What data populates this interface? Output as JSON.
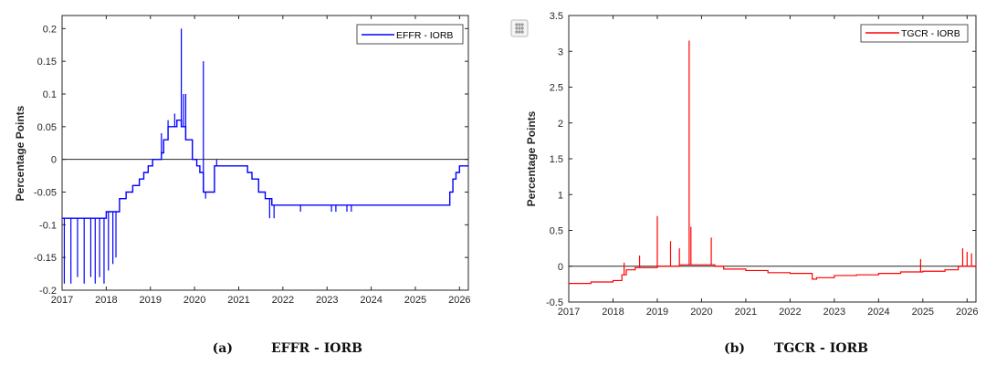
{
  "chart_data": [
    {
      "type": "line",
      "caption_tag": "(a)",
      "caption_title": "EFFR - IORB",
      "ylabel": "Percentage Points",
      "xlabel": "",
      "xlim": [
        2017,
        2026.2
      ],
      "ylim": [
        -0.2,
        0.22
      ],
      "xticks": [
        2017,
        2018,
        2019,
        2020,
        2021,
        2022,
        2023,
        2024,
        2025,
        2026
      ],
      "yticks": [
        -0.2,
        -0.15,
        -0.1,
        -0.05,
        0,
        0.05,
        0.1,
        0.15,
        0.2
      ],
      "zero_line": 0,
      "legend": "top-right",
      "series": [
        {
          "name": "EFFR - IORB",
          "color": "#0000ff",
          "base": [
            [
              2017.0,
              -0.09
            ],
            [
              2017.95,
              -0.09
            ],
            [
              2018.0,
              -0.08
            ],
            [
              2018.25,
              -0.08
            ],
            [
              2018.3,
              -0.06
            ],
            [
              2018.45,
              -0.05
            ],
            [
              2018.6,
              -0.04
            ],
            [
              2018.75,
              -0.03
            ],
            [
              2018.85,
              -0.02
            ],
            [
              2018.95,
              -0.01
            ],
            [
              2019.05,
              0.0
            ],
            [
              2019.25,
              0.01
            ],
            [
              2019.3,
              0.03
            ],
            [
              2019.4,
              0.05
            ],
            [
              2019.5,
              0.05
            ],
            [
              2019.6,
              0.06
            ],
            [
              2019.7,
              0.05
            ],
            [
              2019.8,
              0.03
            ],
            [
              2019.95,
              0.0
            ],
            [
              2020.05,
              -0.01
            ],
            [
              2020.12,
              -0.02
            ],
            [
              2020.2,
              -0.05
            ],
            [
              2020.35,
              -0.05
            ],
            [
              2020.45,
              -0.01
            ],
            [
              2020.6,
              -0.01
            ],
            [
              2021.0,
              -0.01
            ],
            [
              2021.2,
              -0.02
            ],
            [
              2021.3,
              -0.03
            ],
            [
              2021.45,
              -0.05
            ],
            [
              2021.6,
              -0.06
            ],
            [
              2021.75,
              -0.07
            ],
            [
              2025.7,
              -0.07
            ],
            [
              2025.78,
              -0.05
            ],
            [
              2025.85,
              -0.03
            ],
            [
              2025.92,
              -0.02
            ],
            [
              2026.0,
              -0.01
            ],
            [
              2026.2,
              -0.01
            ]
          ],
          "spikes": [
            [
              2017.05,
              -0.19
            ],
            [
              2017.2,
              -0.19
            ],
            [
              2017.35,
              -0.18
            ],
            [
              2017.5,
              -0.19
            ],
            [
              2017.65,
              -0.18
            ],
            [
              2017.75,
              -0.19
            ],
            [
              2017.85,
              -0.18
            ],
            [
              2017.95,
              -0.19
            ],
            [
              2018.05,
              -0.17
            ],
            [
              2018.15,
              -0.16
            ],
            [
              2018.22,
              -0.15
            ],
            [
              2019.25,
              0.04
            ],
            [
              2019.4,
              0.06
            ],
            [
              2019.55,
              0.07
            ],
            [
              2019.7,
              0.2
            ],
            [
              2019.75,
              0.1
            ],
            [
              2019.8,
              0.1
            ],
            [
              2020.2,
              0.15
            ],
            [
              2020.25,
              -0.06
            ],
            [
              2020.5,
              0.0
            ],
            [
              2021.7,
              -0.09
            ],
            [
              2021.8,
              -0.09
            ],
            [
              2022.4,
              -0.08
            ],
            [
              2023.1,
              -0.08
            ],
            [
              2023.2,
              -0.08
            ],
            [
              2023.45,
              -0.08
            ],
            [
              2023.55,
              -0.08
            ]
          ]
        }
      ]
    },
    {
      "type": "line",
      "caption_tag": "(b)",
      "caption_title": "TGCR - IORB",
      "ylabel": "Percentage Points",
      "xlabel": "",
      "xlim": [
        2017,
        2026.2
      ],
      "ylim": [
        -0.5,
        3.5
      ],
      "xticks": [
        2017,
        2018,
        2019,
        2020,
        2021,
        2022,
        2023,
        2024,
        2025,
        2026
      ],
      "yticks": [
        -0.5,
        0,
        0.5,
        1,
        1.5,
        2,
        2.5,
        3,
        3.5
      ],
      "zero_line": 0,
      "legend": "top-right",
      "series": [
        {
          "name": "TGCR - IORB",
          "color": "#ff0000",
          "base": [
            [
              2017.0,
              -0.24
            ],
            [
              2017.5,
              -0.22
            ],
            [
              2018.0,
              -0.2
            ],
            [
              2018.2,
              -0.12
            ],
            [
              2018.3,
              -0.05
            ],
            [
              2018.5,
              -0.02
            ],
            [
              2019.0,
              0.0
            ],
            [
              2019.5,
              0.02
            ],
            [
              2020.0,
              0.02
            ],
            [
              2020.3,
              0.0
            ],
            [
              2020.5,
              -0.04
            ],
            [
              2021.0,
              -0.06
            ],
            [
              2021.5,
              -0.09
            ],
            [
              2022.0,
              -0.1
            ],
            [
              2022.4,
              -0.1
            ],
            [
              2022.5,
              -0.18
            ],
            [
              2022.6,
              -0.16
            ],
            [
              2023.0,
              -0.13
            ],
            [
              2023.5,
              -0.12
            ],
            [
              2024.0,
              -0.1
            ],
            [
              2024.5,
              -0.08
            ],
            [
              2025.0,
              -0.07
            ],
            [
              2025.5,
              -0.05
            ],
            [
              2025.8,
              0.0
            ],
            [
              2026.2,
              0.02
            ]
          ],
          "spikes": [
            [
              2018.25,
              0.05
            ],
            [
              2018.6,
              0.15
            ],
            [
              2019.0,
              0.7
            ],
            [
              2019.3,
              0.35
            ],
            [
              2019.5,
              0.25
            ],
            [
              2019.72,
              3.15
            ],
            [
              2019.76,
              0.55
            ],
            [
              2020.22,
              0.4
            ],
            [
              2024.95,
              0.1
            ],
            [
              2025.9,
              0.25
            ],
            [
              2026.0,
              0.2
            ],
            [
              2026.1,
              0.18
            ]
          ]
        }
      ]
    }
  ]
}
